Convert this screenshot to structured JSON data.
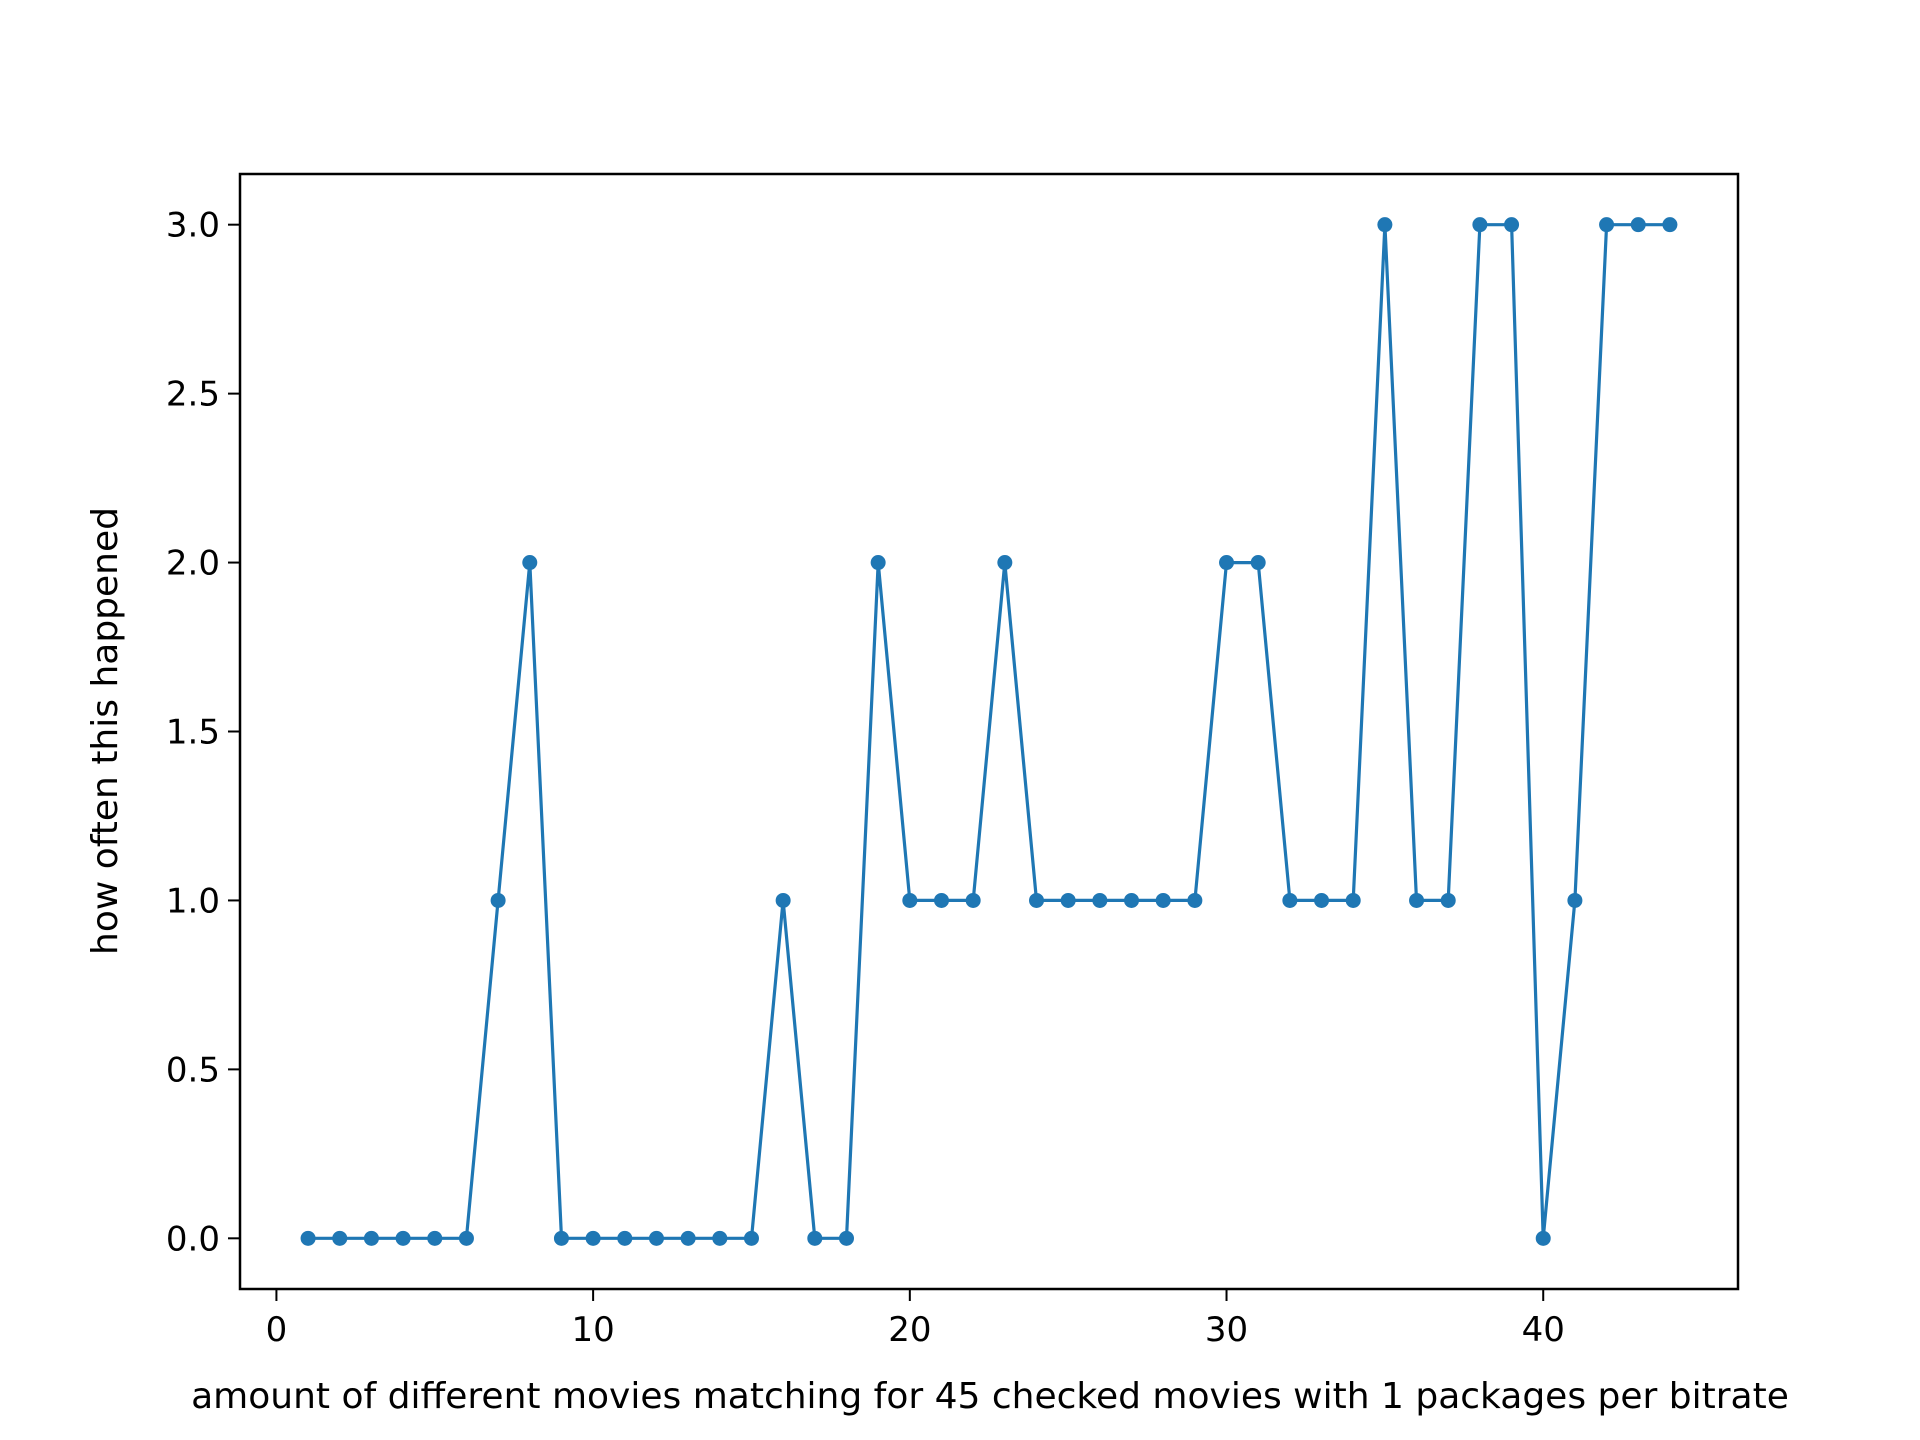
{
  "chart_data": {
    "type": "line",
    "title": "",
    "xlabel": "amount of different movies matching for 45 checked movies with 1 packages per bitrate",
    "ylabel": "how often this happened",
    "xlim": [
      -1.15,
      46.15
    ],
    "ylim": [
      -0.15,
      3.15
    ],
    "x_ticks": [
      0,
      10,
      20,
      30,
      40
    ],
    "y_ticks": [
      0.0,
      0.5,
      1.0,
      1.5,
      2.0,
      2.5,
      3.0
    ],
    "x_tick_labels": [
      "0",
      "10",
      "20",
      "30",
      "40"
    ],
    "y_tick_labels": [
      "0.0",
      "0.5",
      "1.0",
      "1.5",
      "2.0",
      "2.5",
      "3.0"
    ],
    "grid": false,
    "legend": false,
    "series": [
      {
        "color": "#1f77b4",
        "marker": "circle",
        "x": [
          1,
          2,
          3,
          4,
          5,
          6,
          7,
          8,
          9,
          10,
          11,
          12,
          13,
          14,
          15,
          16,
          17,
          18,
          19,
          20,
          21,
          22,
          23,
          24,
          25,
          26,
          27,
          28,
          29,
          30,
          31,
          32,
          33,
          34,
          35,
          36,
          37,
          38,
          39,
          40,
          41,
          42,
          43,
          44
        ],
        "y": [
          0,
          0,
          0,
          0,
          0,
          0,
          1,
          2,
          0,
          0,
          0,
          0,
          0,
          0,
          0,
          1,
          0,
          0,
          2,
          1,
          1,
          1,
          2,
          1,
          1,
          1,
          1,
          1,
          1,
          2,
          2,
          1,
          1,
          1,
          3,
          1,
          1,
          3,
          3,
          0,
          1,
          3,
          3,
          3
        ]
      }
    ]
  }
}
